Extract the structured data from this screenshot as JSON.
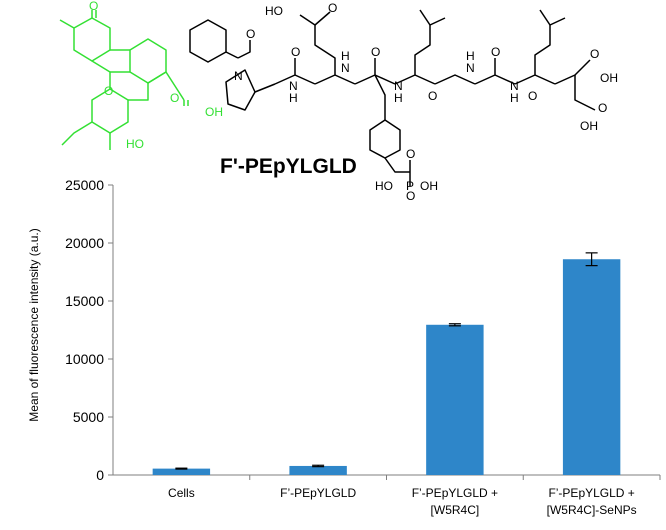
{
  "structure": {
    "compound_name": "F'-PEpYLGLD",
    "fluorescein_color": "#33e033",
    "atom_labels": {
      "keto_o": "O",
      "ring_o": "O",
      "carboxyl_o": "O",
      "carboxyl_oh": "OH",
      "phenol_oh": "HO",
      "pro_n": "N",
      "nh1": "N",
      "h1": "H",
      "nh2": "N",
      "h2": "H",
      "nh3": "N",
      "h3": "H",
      "nh4": "N",
      "h4": "H",
      "nh5": "N",
      "h5": "H",
      "glu_ho": "HO",
      "co1": "O",
      "co2": "O",
      "co3": "O",
      "co4": "O",
      "co5": "O",
      "co6": "O",
      "glu_o": "O",
      "asp_o": "O",
      "asp_oh": "OH",
      "asp_side_oh": "OH",
      "asp_side_o": "O",
      "phos_o1": "O",
      "phos_p": "P",
      "phos_oh": "OH",
      "phos_ho": "HO",
      "phos_o2": "O"
    }
  },
  "chart_data": {
    "type": "bar",
    "categories": [
      [
        "Cells"
      ],
      [
        "F’-PEpYLGLD"
      ],
      [
        "F’-PEpYLGLD +",
        "[W5R4C]"
      ],
      [
        "F’-PEpYLGLD +",
        "[W5R4C]-SeNPs"
      ]
    ],
    "values": [
      550,
      780,
      12950,
      18600
    ],
    "errors": [
      40,
      60,
      90,
      550
    ],
    "ylabel": "Mean of fluorescence intensity (a.u.)",
    "ylim": [
      0,
      25000
    ],
    "yticks": [
      0,
      5000,
      10000,
      15000,
      20000,
      25000
    ],
    "bar_color": "#2e86c9",
    "grid": false
  }
}
